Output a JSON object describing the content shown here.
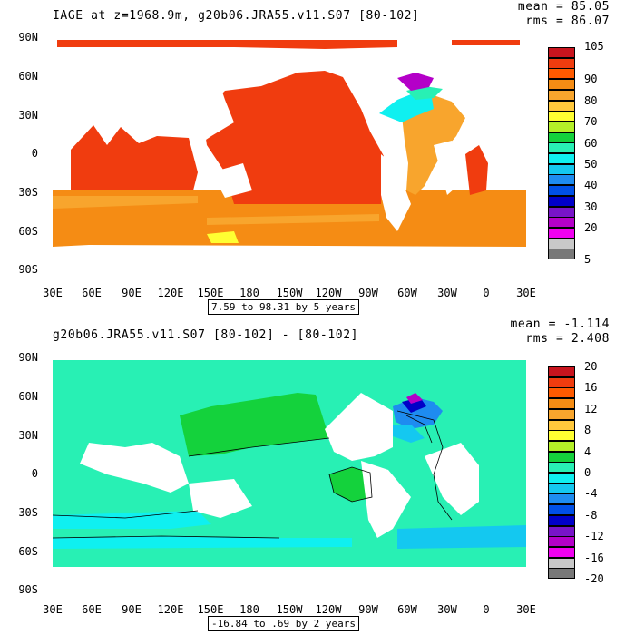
{
  "top": {
    "title": "IAGE at z=1968.9m, g20b06.JRA55.v11.S07 [80-102]",
    "mean": "mean = 85.05",
    "rms": "rms = 86.07",
    "range": "7.59 to 98.31 by 5 years",
    "colorbar": {
      "labels": [
        "105",
        "90",
        "80",
        "70",
        "60",
        "50",
        "40",
        "30",
        "20",
        "5"
      ],
      "colors": [
        "#c8141e",
        "#f03c0f",
        "#ff5a00",
        "#f58c14",
        "#f8a52d",
        "#ffc83c",
        "#ffff32",
        "#b4f028",
        "#14d23c",
        "#28f0b4",
        "#0ff0f0",
        "#14c8f0",
        "#1e8cf0",
        "#0050e6",
        "#0000c8",
        "#7814c8",
        "#b400c8",
        "#f000f0",
        "#c8c8c8",
        "#787878"
      ]
    }
  },
  "bottom": {
    "title": "g20b06.JRA55.v11.S07 [80-102] -  [80-102]",
    "mean": "mean = -1.114",
    "rms": "rms = 2.408",
    "range": "-16.84 to .69 by 2 years",
    "colorbar": {
      "labels": [
        "20",
        "16",
        "12",
        "8",
        "4",
        "0",
        "-4",
        "-8",
        "-12",
        "-16",
        "-20"
      ],
      "colors": [
        "#c8141e",
        "#f03c0f",
        "#ff5a00",
        "#f58c14",
        "#f8a52d",
        "#ffc83c",
        "#ffff32",
        "#b4f028",
        "#14d23c",
        "#28f0b4",
        "#0ff0f0",
        "#14c8f0",
        "#1e8cf0",
        "#0050e6",
        "#0000c8",
        "#7814c8",
        "#b400c8",
        "#f000f0",
        "#c8c8c8",
        "#787878"
      ]
    }
  },
  "axes": {
    "lat_labels": [
      "90N",
      "60N",
      "30N",
      "0",
      "30S",
      "60S",
      "90S"
    ],
    "lon_labels": [
      "30E",
      "60E",
      "90E",
      "120E",
      "150E",
      "180",
      "150W",
      "120W",
      "90W",
      "60W",
      "30W",
      "0",
      "30E"
    ]
  }
}
